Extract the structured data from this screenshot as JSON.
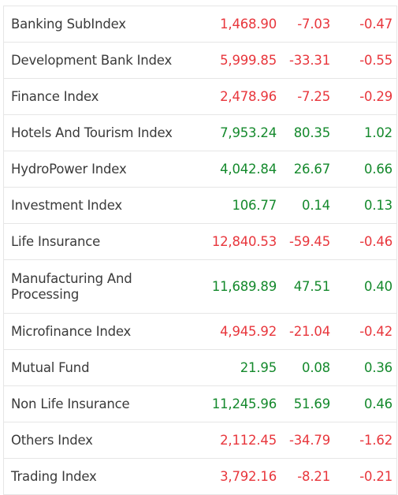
{
  "table": {
    "rows": [
      {
        "name": "Banking SubIndex",
        "value": "1,468.90",
        "change": "-7.03",
        "percent": "-0.47",
        "color": "#e8363c"
      },
      {
        "name": "Development Bank Index",
        "value": "5,999.85",
        "change": "-33.31",
        "percent": "-0.55",
        "color": "#e8363c"
      },
      {
        "name": "Finance Index",
        "value": "2,478.96",
        "change": "-7.25",
        "percent": "-0.29",
        "color": "#e8363c"
      },
      {
        "name": "Hotels And Tourism Index",
        "value": "7,953.24",
        "change": "80.35",
        "percent": "1.02",
        "color": "#14892c"
      },
      {
        "name": "HydroPower Index",
        "value": "4,042.84",
        "change": "26.67",
        "percent": "0.66",
        "color": "#14892c"
      },
      {
        "name": "Investment Index",
        "value": "106.77",
        "change": "0.14",
        "percent": "0.13",
        "color": "#14892c"
      },
      {
        "name": "Life Insurance",
        "value": "12,840.53",
        "change": "-59.45",
        "percent": "-0.46",
        "color": "#e8363c"
      },
      {
        "name": "Manufacturing And Processing",
        "value": "11,689.89",
        "change": "47.51",
        "percent": "0.40",
        "color": "#14892c"
      },
      {
        "name": "Microfinance Index",
        "value": "4,945.92",
        "change": "-21.04",
        "percent": "-0.42",
        "color": "#e8363c"
      },
      {
        "name": "Mutual Fund",
        "value": "21.95",
        "change": "0.08",
        "percent": "0.36",
        "color": "#14892c"
      },
      {
        "name": "Non Life Insurance",
        "value": "11,245.96",
        "change": "51.69",
        "percent": "0.46",
        "color": "#14892c"
      },
      {
        "name": "Others Index",
        "value": "2,112.45",
        "change": "-34.79",
        "percent": "-1.62",
        "color": "#e8363c"
      },
      {
        "name": "Trading Index",
        "value": "3,792.16",
        "change": "-8.21",
        "percent": "-0.21",
        "color": "#e8363c"
      }
    ]
  }
}
